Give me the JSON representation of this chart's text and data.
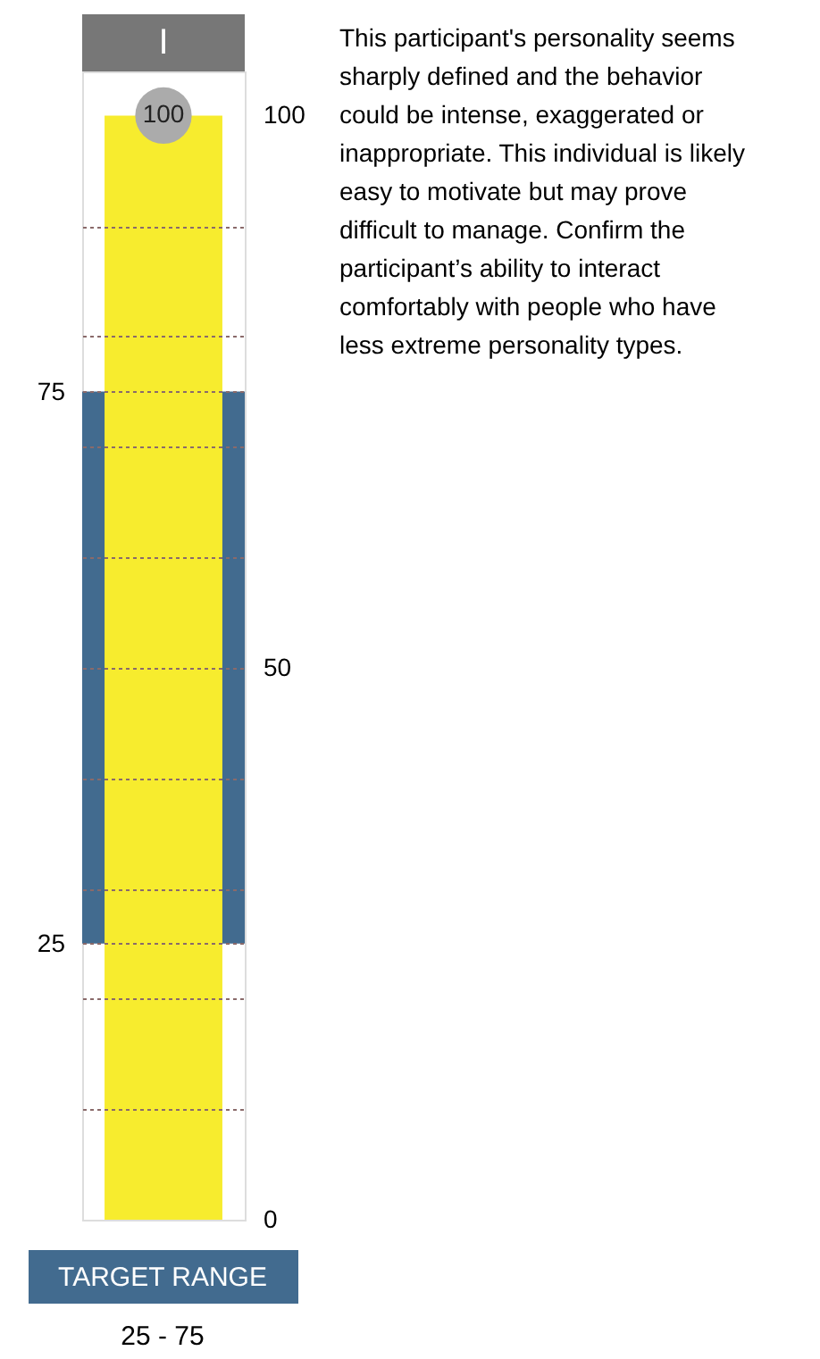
{
  "chart_data": {
    "type": "bar",
    "title": "I",
    "categories": [
      null
    ],
    "values": [
      100
    ],
    "color": "#f7ec2e",
    "ylim": [
      0,
      104
    ],
    "yticks": [
      {
        "value": 10,
        "label": null
      },
      {
        "value": 20,
        "label": null
      },
      25,
      {
        "value": 30,
        "label": null
      },
      {
        "value": 40,
        "label": null
      },
      {
        "value": 50,
        "label": null
      },
      {
        "value": 60,
        "label": null
      },
      {
        "value": 70,
        "label": null
      },
      75,
      {
        "value": 80,
        "label": null
      },
      {
        "value": 90,
        "label": null
      }
    ],
    "y2lim": [
      0,
      104
    ],
    "y2ticks": [
      0,
      50,
      100
    ],
    "grid": "y",
    "data_labels": true,
    "bands": [
      {
        "axis": "y",
        "from": 25,
        "to": 75,
        "color": "#426b8f"
      }
    ],
    "annotations": [
      "TARGET RANGE",
      "25 - 75",
      "This participant's personality seems sharply defined and the behavior could be intense, exaggerated or inappropriate. This individual is likely easy to motivate but may prove difficult to manage. Confirm the participant’s ability to interact comfortably with people who have less extreme personality types."
    ]
  }
}
